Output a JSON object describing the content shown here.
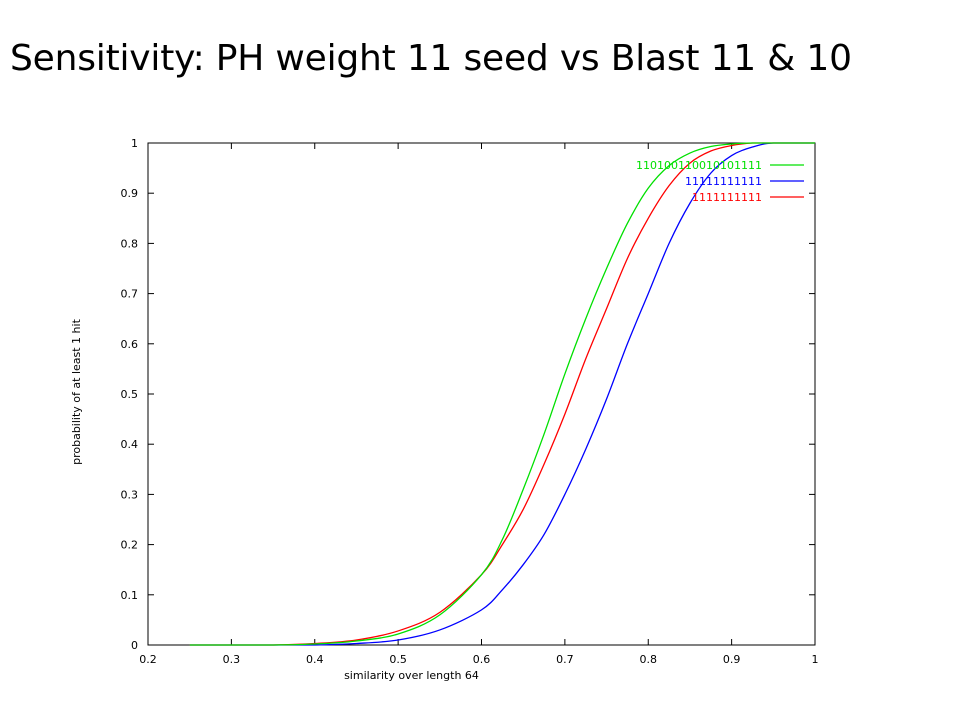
{
  "slide": {
    "title": "Sensitivity: PH weight 11 seed vs Blast 11 & 10"
  },
  "chart_data": {
    "type": "line",
    "title": "",
    "xlabel": "similarity over length 64",
    "ylabel": "probability of at least 1 hit",
    "xlim": [
      0.2,
      1
    ],
    "ylim": [
      0,
      1
    ],
    "x_ticks": [
      "0.2",
      "0.3",
      "0.4",
      "0.5",
      "0.6",
      "0.7",
      "0.8",
      "0.9",
      "1"
    ],
    "y_ticks": [
      "0",
      "0.1",
      "0.2",
      "0.3",
      "0.4",
      "0.5",
      "0.6",
      "0.7",
      "0.8",
      "0.9",
      "1"
    ],
    "grid": false,
    "legend_position": "top-right",
    "series": [
      {
        "name": "110100110010101111",
        "color": "#00e000",
        "x": [
          0.25,
          0.3,
          0.35,
          0.4,
          0.45,
          0.5,
          0.55,
          0.6,
          0.625,
          0.65,
          0.675,
          0.7,
          0.725,
          0.75,
          0.775,
          0.8,
          0.825,
          0.85,
          0.875,
          0.9,
          0.925,
          0.95,
          1.0
        ],
        "values": [
          0.0,
          0.0,
          0.0,
          0.002,
          0.008,
          0.022,
          0.06,
          0.14,
          0.21,
          0.31,
          0.42,
          0.54,
          0.65,
          0.75,
          0.84,
          0.91,
          0.955,
          0.98,
          0.993,
          0.998,
          1.0,
          1.0,
          1.0
        ]
      },
      {
        "name": "11111111111",
        "color": "#0000ff",
        "x": [
          0.25,
          0.3,
          0.35,
          0.4,
          0.45,
          0.5,
          0.55,
          0.6,
          0.625,
          0.65,
          0.675,
          0.7,
          0.725,
          0.75,
          0.775,
          0.8,
          0.825,
          0.85,
          0.875,
          0.9,
          0.925,
          0.95,
          1.0
        ],
        "values": [
          0.0,
          0.0,
          0.0,
          0.0,
          0.003,
          0.01,
          0.03,
          0.07,
          0.11,
          0.16,
          0.22,
          0.3,
          0.39,
          0.49,
          0.6,
          0.7,
          0.8,
          0.88,
          0.94,
          0.975,
          0.992,
          1.0,
          1.0
        ]
      },
      {
        "name": "1111111111",
        "color": "#ff0000",
        "x": [
          0.25,
          0.3,
          0.35,
          0.4,
          0.45,
          0.5,
          0.55,
          0.6,
          0.625,
          0.65,
          0.675,
          0.7,
          0.725,
          0.75,
          0.775,
          0.8,
          0.825,
          0.85,
          0.875,
          0.9,
          0.925,
          0.95,
          1.0
        ],
        "values": [
          0.0,
          0.0,
          0.0,
          0.003,
          0.01,
          0.028,
          0.065,
          0.14,
          0.2,
          0.27,
          0.36,
          0.46,
          0.57,
          0.67,
          0.77,
          0.85,
          0.915,
          0.96,
          0.984,
          0.995,
          1.0,
          1.0,
          1.0
        ]
      }
    ]
  }
}
